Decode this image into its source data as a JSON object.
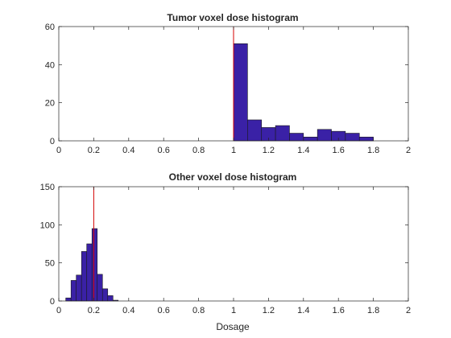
{
  "chart_data": [
    {
      "type": "bar",
      "title": "Tumor voxel dose histogram",
      "xlabel": "",
      "ylabel": "",
      "xlim": [
        0,
        2
      ],
      "ylim": [
        0,
        60
      ],
      "xticks": [
        "0",
        "0.2",
        "0.4",
        "0.6",
        "0.8",
        "1",
        "1.2",
        "1.4",
        "1.6",
        "1.8",
        "2"
      ],
      "yticks": [
        "0",
        "20",
        "40",
        "60"
      ],
      "bar_color": "#3a21a6",
      "reference_line": {
        "x": 1.0,
        "color": "#d40000"
      },
      "bins": [
        {
          "x0": 1.0,
          "x1": 1.08,
          "value": 51
        },
        {
          "x0": 1.08,
          "x1": 1.16,
          "value": 11
        },
        {
          "x0": 1.16,
          "x1": 1.24,
          "value": 7
        },
        {
          "x0": 1.24,
          "x1": 1.32,
          "value": 8
        },
        {
          "x0": 1.32,
          "x1": 1.4,
          "value": 4
        },
        {
          "x0": 1.4,
          "x1": 1.48,
          "value": 2
        },
        {
          "x0": 1.48,
          "x1": 1.56,
          "value": 6
        },
        {
          "x0": 1.56,
          "x1": 1.64,
          "value": 5
        },
        {
          "x0": 1.64,
          "x1": 1.72,
          "value": 4
        },
        {
          "x0": 1.72,
          "x1": 1.8,
          "value": 2
        }
      ]
    },
    {
      "type": "bar",
      "title": "Other voxel dose histogram",
      "xlabel": "Dosage",
      "ylabel": "",
      "xlim": [
        0,
        2
      ],
      "ylim": [
        0,
        150
      ],
      "xticks": [
        "0",
        "0.2",
        "0.4",
        "0.6",
        "0.8",
        "1",
        "1.2",
        "1.4",
        "1.6",
        "1.8",
        "2"
      ],
      "yticks": [
        "0",
        "50",
        "100",
        "150"
      ],
      "bar_color": "#3a21a6",
      "reference_line": {
        "x": 0.2,
        "color": "#d40000"
      },
      "bins": [
        {
          "x0": 0.04,
          "x1": 0.07,
          "value": 4
        },
        {
          "x0": 0.07,
          "x1": 0.1,
          "value": 27
        },
        {
          "x0": 0.1,
          "x1": 0.13,
          "value": 34
        },
        {
          "x0": 0.13,
          "x1": 0.16,
          "value": 65
        },
        {
          "x0": 0.16,
          "x1": 0.19,
          "value": 75
        },
        {
          "x0": 0.19,
          "x1": 0.22,
          "value": 95
        },
        {
          "x0": 0.22,
          "x1": 0.25,
          "value": 35
        },
        {
          "x0": 0.25,
          "x1": 0.28,
          "value": 16
        },
        {
          "x0": 0.28,
          "x1": 0.31,
          "value": 7
        },
        {
          "x0": 0.31,
          "x1": 0.34,
          "value": 1
        }
      ]
    }
  ]
}
